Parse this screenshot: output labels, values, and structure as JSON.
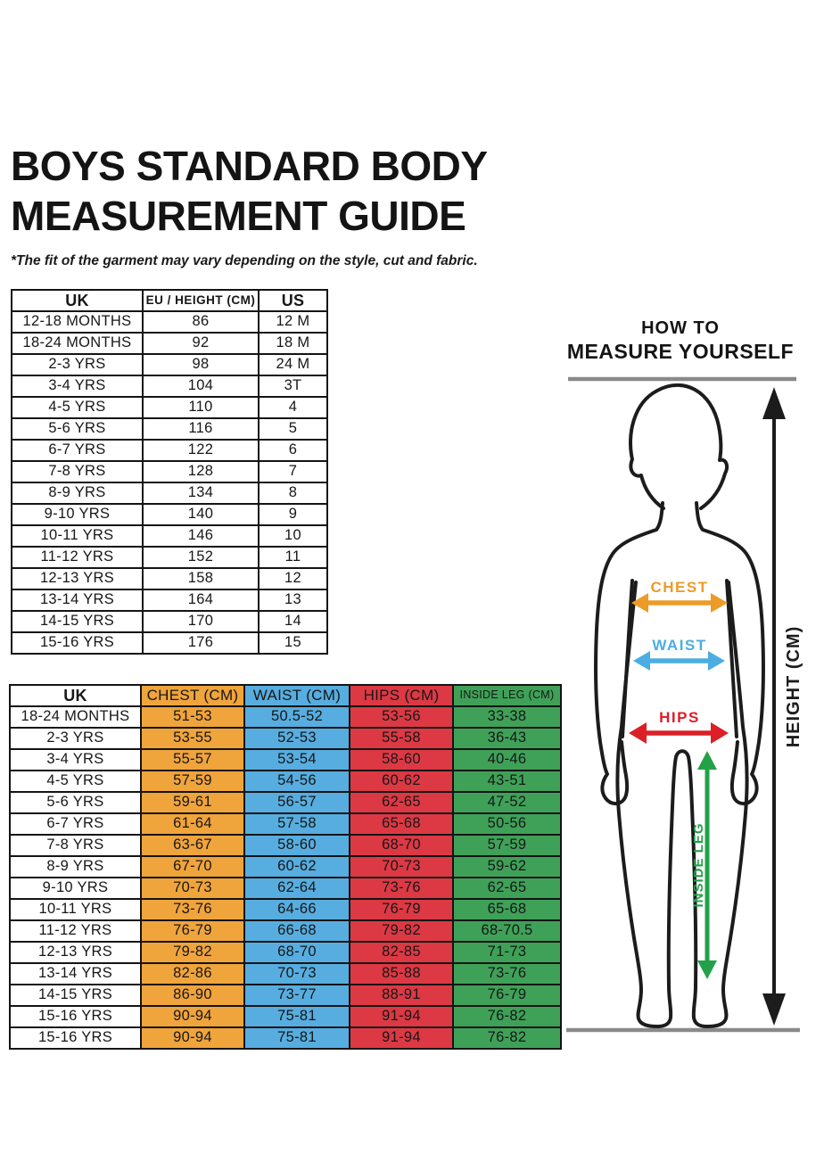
{
  "header": {
    "title_line1": "BOYS STANDARD BODY",
    "title_line2": "MEASUREMENT GUIDE",
    "disclaimer": "*The fit of the garment may vary depending on the style, cut and fabric."
  },
  "size_table": {
    "headers": [
      "UK",
      "EU / HEIGHT (CM)",
      "US"
    ],
    "rows": [
      [
        "12-18 MONTHS",
        "86",
        "12 M"
      ],
      [
        "18-24 MONTHS",
        "92",
        "18 M"
      ],
      [
        "2-3 YRS",
        "98",
        "24 M"
      ],
      [
        "3-4 YRS",
        "104",
        "3T"
      ],
      [
        "4-5 YRS",
        "110",
        "4"
      ],
      [
        "5-6 YRS",
        "116",
        "5"
      ],
      [
        "6-7 YRS",
        "122",
        "6"
      ],
      [
        "7-8 YRS",
        "128",
        "7"
      ],
      [
        "8-9 YRS",
        "134",
        "8"
      ],
      [
        "9-10 YRS",
        "140",
        "9"
      ],
      [
        "10-11 YRS",
        "146",
        "10"
      ],
      [
        "11-12 YRS",
        "152",
        "11"
      ],
      [
        "12-13 YRS",
        "158",
        "12"
      ],
      [
        "13-14 YRS",
        "164",
        "13"
      ],
      [
        "14-15 YRS",
        "170",
        "14"
      ],
      [
        "15-16 YRS",
        "176",
        "15"
      ]
    ]
  },
  "body_table": {
    "headers": [
      "UK",
      "CHEST (CM)",
      "WAIST (CM)",
      "HIPS (CM)",
      "INSIDE LEG (CM)"
    ],
    "column_colors": [
      "#FFFFFF",
      "#F0A43C",
      "#57ADDF",
      "#DC3944",
      "#3FA158"
    ],
    "rows": [
      [
        "18-24 MONTHS",
        "51-53",
        "50.5-52",
        "53-56",
        "33-38"
      ],
      [
        "2-3 YRS",
        "53-55",
        "52-53",
        "55-58",
        "36-43"
      ],
      [
        "3-4 YRS",
        "55-57",
        "53-54",
        "58-60",
        "40-46"
      ],
      [
        "4-5 YRS",
        "57-59",
        "54-56",
        "60-62",
        "43-51"
      ],
      [
        "5-6 YRS",
        "59-61",
        "56-57",
        "62-65",
        "47-52"
      ],
      [
        "6-7 YRS",
        "61-64",
        "57-58",
        "65-68",
        "50-56"
      ],
      [
        "7-8 YRS",
        "63-67",
        "58-60",
        "68-70",
        "57-59"
      ],
      [
        "8-9 YRS",
        "67-70",
        "60-62",
        "70-73",
        "59-62"
      ],
      [
        "9-10 YRS",
        "70-73",
        "62-64",
        "73-76",
        "62-65"
      ],
      [
        "10-11 YRS",
        "73-76",
        "64-66",
        "76-79",
        "65-68"
      ],
      [
        "11-12 YRS",
        "76-79",
        "66-68",
        "79-82",
        "68-70.5"
      ],
      [
        "12-13 YRS",
        "79-82",
        "68-70",
        "82-85",
        "71-73"
      ],
      [
        "13-14 YRS",
        "82-86",
        "70-73",
        "85-88",
        "73-76"
      ],
      [
        "14-15 YRS",
        "86-90",
        "73-77",
        "88-91",
        "76-79"
      ],
      [
        "15-16 YRS",
        "90-94",
        "75-81",
        "91-94",
        "76-82"
      ],
      [
        "15-16 YRS",
        "90-94",
        "75-81",
        "91-94",
        "76-82"
      ]
    ]
  },
  "figure": {
    "heading_line1": "HOW TO",
    "heading_line2": "MEASURE YOURSELF",
    "labels": {
      "chest": "CHEST",
      "waist": "WAIST",
      "hips": "HIPS",
      "inside_leg": "INSIDE LEG",
      "height": "HEIGHT (CM)"
    },
    "colors": {
      "chest": "#ED9B28",
      "waist": "#4BADE2",
      "hips": "#DB2028",
      "inside_leg": "#23A148",
      "height_arrow": "#1C1C1C",
      "ground_line": "#8A8A8A"
    }
  }
}
